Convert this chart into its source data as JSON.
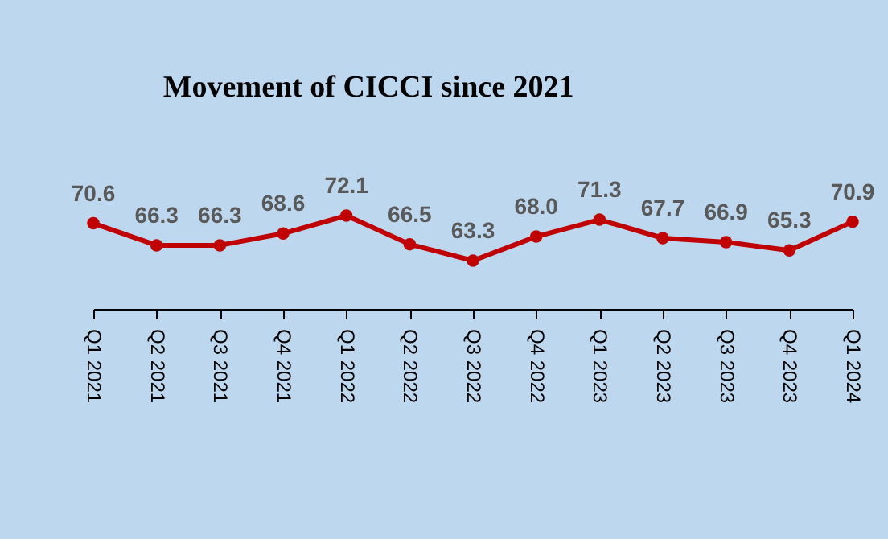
{
  "chart_data": {
    "type": "line",
    "title": "Movement of CICCI since 2021",
    "categories": [
      "Q1 2021",
      "Q2 2021",
      "Q3 2021",
      "Q4 2021",
      "Q1 2022",
      "Q2 2022",
      "Q3 2022",
      "Q4 2022",
      "Q1 2023",
      "Q2 2023",
      "Q3 2023",
      "Q4 2023",
      "Q1 2024"
    ],
    "series": [
      {
        "color": "#c00000",
        "values": [
          70.6,
          66.3,
          66.3,
          68.6,
          72.1,
          66.5,
          63.3,
          68.0,
          71.3,
          67.7,
          66.9,
          65.3,
          70.9
        ],
        "value_labels": [
          "70.6",
          "66.3",
          "66.3",
          "68.6",
          "72.1",
          "66.5",
          "63.3",
          "68.0",
          "71.3",
          "67.7",
          "66.9",
          "65.3",
          "70.9"
        ]
      }
    ],
    "marker": "circle",
    "line_style": "solid",
    "tick_labels": "x"
  }
}
